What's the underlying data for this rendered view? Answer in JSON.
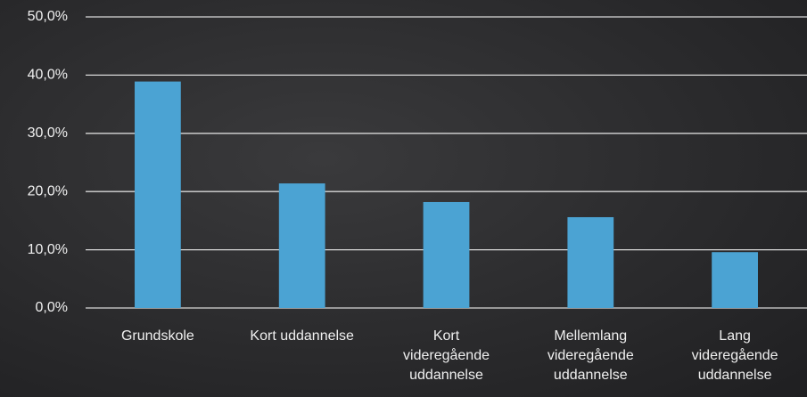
{
  "chart_data": {
    "type": "bar",
    "categories": [
      "Grundskole",
      "Kort uddannelse",
      "Kort videregående uddannelse",
      "Mellemlang videregående uddannelse",
      "Lang videregående uddannelse"
    ],
    "values": [
      38.9,
      21.4,
      18.2,
      15.6,
      9.6
    ],
    "color": "#4ba3d3",
    "ylim": [
      0,
      50
    ],
    "yticks": [
      {
        "value": 0,
        "label": "0,0%"
      },
      {
        "value": 10,
        "label": "10,0%"
      },
      {
        "value": 20,
        "label": "20,0%"
      },
      {
        "value": 30,
        "label": "30,0%"
      },
      {
        "value": 40,
        "label": "40,0%"
      },
      {
        "value": 50,
        "label": "50,0%"
      }
    ],
    "grid": true
  }
}
